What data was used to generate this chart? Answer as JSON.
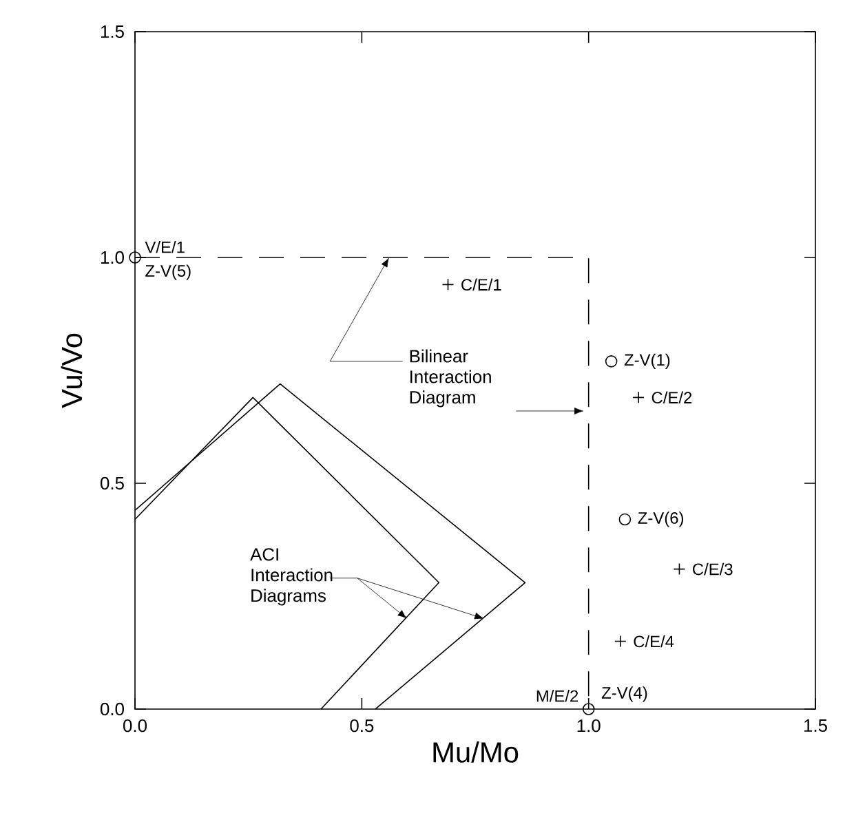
{
  "chart_data": {
    "type": "line",
    "xlabel": "Mu/Mo",
    "ylabel": "Vu/Vo",
    "xlim": [
      0,
      1.5
    ],
    "ylim": [
      0,
      1.5
    ],
    "xticks": [
      {
        "value": 0,
        "label": "0.0"
      },
      {
        "value": 0.5,
        "label": "0.5"
      },
      {
        "value": 1,
        "label": "1.0"
      },
      {
        "value": 1.5,
        "label": "1.5"
      }
    ],
    "yticks": [
      {
        "value": 0,
        "label": "0.0"
      },
      {
        "value": 0.5,
        "label": "0.5"
      },
      {
        "value": 1,
        "label": "1.0"
      },
      {
        "value": 1.5,
        "label": "1.5"
      }
    ],
    "grid": false,
    "series": [
      {
        "color": "#000000",
        "marker": "none",
        "line_style": "solid",
        "x": [
          0,
          0.26,
          0.67,
          0.41
        ],
        "values": [
          0.42,
          0.69,
          0.28,
          0
        ]
      },
      {
        "color": "#000000",
        "marker": "none",
        "line_style": "solid",
        "x": [
          0,
          0.32,
          0.86,
          0.53
        ],
        "values": [
          0.44,
          0.72,
          0.28,
          0
        ]
      },
      {
        "color": "#000000",
        "marker": "none",
        "line_style": "dashed",
        "x": [
          0,
          1,
          1
        ],
        "values": [
          1,
          1,
          0
        ]
      },
      {
        "type": "scatter",
        "color": "#000000",
        "marker": "circle",
        "x": [
          0,
          1
        ],
        "values": [
          1,
          0
        ]
      },
      {
        "type": "scatter",
        "color": "#000000",
        "marker": "cross",
        "x": [
          0.69,
          1.11,
          1.2,
          1.07
        ],
        "values": [
          0.94,
          0.69,
          0.31,
          0.15
        ]
      },
      {
        "type": "scatter",
        "color": "#000000",
        "marker": "circle",
        "x": [
          1.05,
          1.08
        ],
        "values": [
          0.77,
          0.42
        ]
      }
    ],
    "annotations": [
      {
        "text": "V/E/1",
        "x": 0,
        "y": 1
      },
      {
        "text": "Z-V(5)",
        "x": 0,
        "y": 1
      },
      {
        "text": "C/E/1",
        "x": 0.69,
        "y": 0.94
      },
      {
        "text": "Z-V(1)",
        "x": 1.05,
        "y": 0.77
      },
      {
        "text": "C/E/2",
        "x": 1.11,
        "y": 0.69
      },
      {
        "text": "Z-V(6)",
        "x": 1.08,
        "y": 0.42
      },
      {
        "text": "C/E/3",
        "x": 1.2,
        "y": 0.31
      },
      {
        "text": "C/E/4",
        "x": 1.07,
        "y": 0.15
      },
      {
        "text": "M/E/2",
        "x": 1,
        "y": 0
      },
      {
        "text": "Z-V(4)",
        "x": 1,
        "y": 0
      },
      {
        "text": "Bilinear Interaction Diagram",
        "x": 0.56,
        "y": 1
      },
      {
        "text": "ACI Interaction Diagrams",
        "x": 0.6,
        "y": 0.2
      }
    ]
  }
}
